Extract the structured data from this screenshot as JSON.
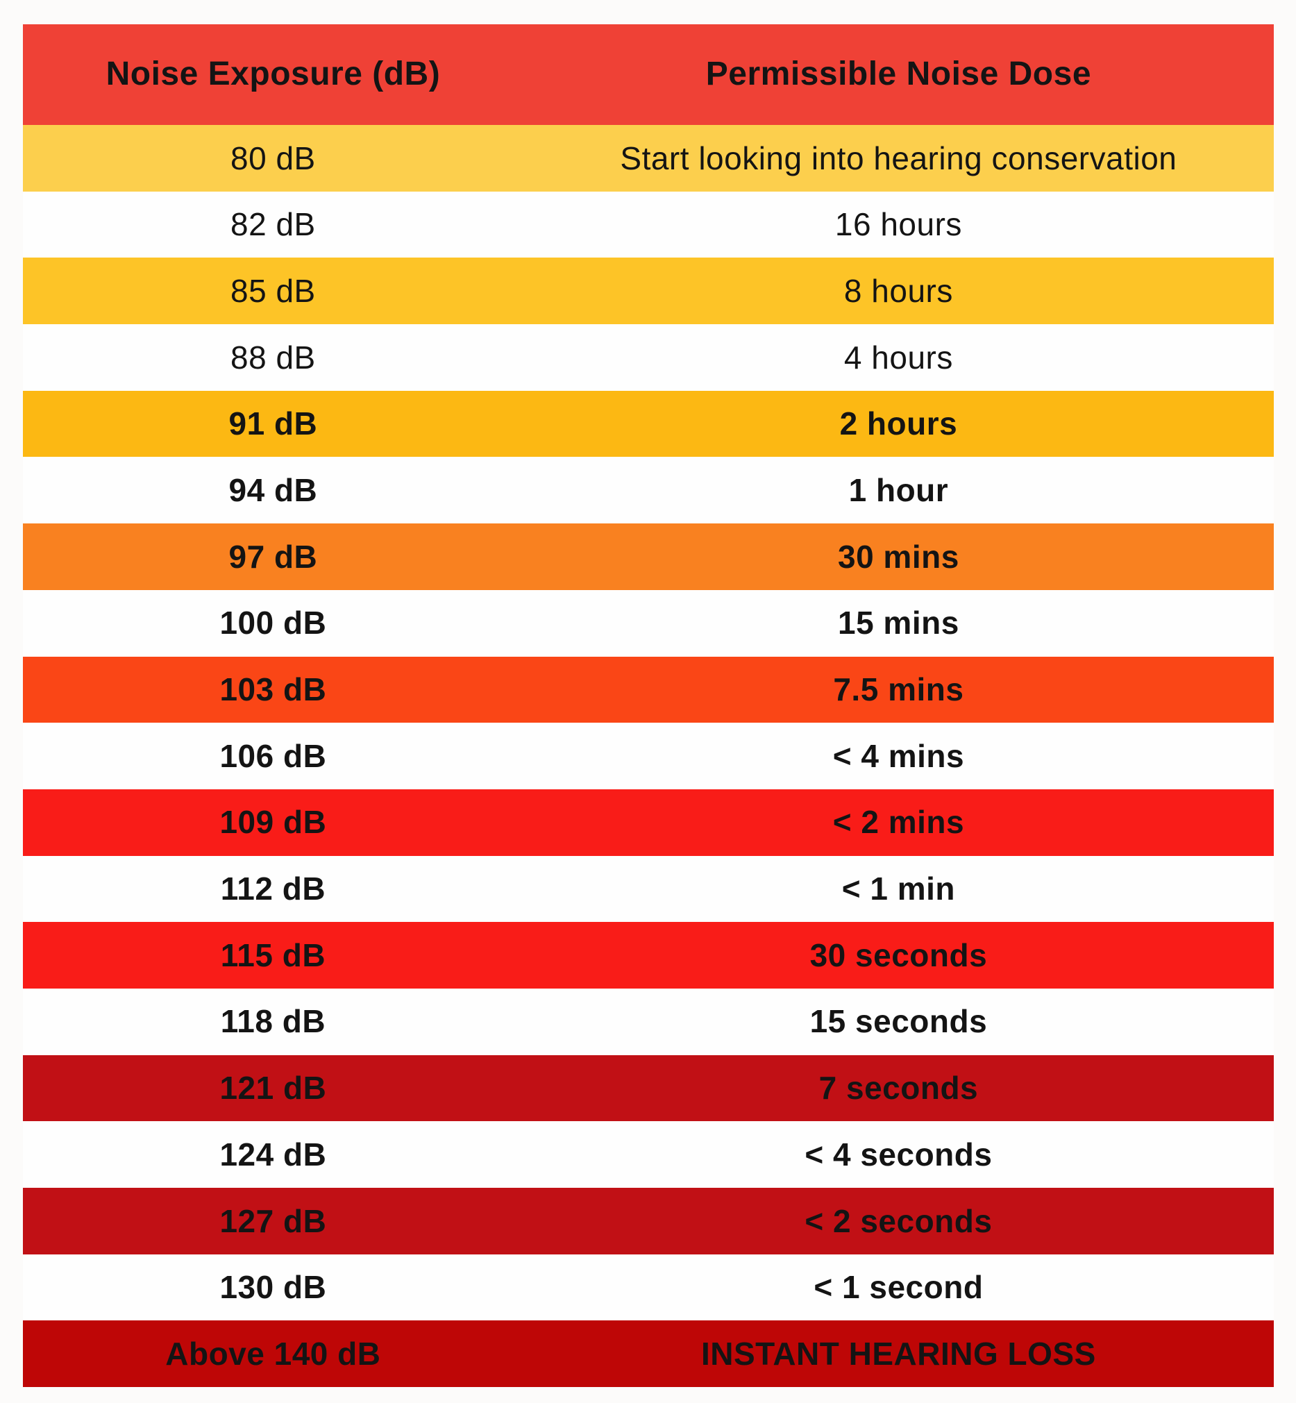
{
  "chart_data": {
    "type": "table",
    "title": "Noise exposure level vs permissible noise dose",
    "columns": [
      "Noise Exposure (dB)",
      "Permissible Noise Dose"
    ],
    "header_bg": "#EF4136",
    "text_color": "#141414",
    "rows": [
      {
        "exposure": "80 dB",
        "dose": "Start looking into hearing conservation",
        "bg": "#FCCF4D",
        "bold": false
      },
      {
        "exposure": "82 dB",
        "dose": "16 hours",
        "bg": "#FEFEFE",
        "bold": false
      },
      {
        "exposure": "85 dB",
        "dose": "8 hours",
        "bg": "#FDC427",
        "bold": false
      },
      {
        "exposure": "88 dB",
        "dose": "4 hours",
        "bg": "#FEFEFE",
        "bold": false
      },
      {
        "exposure": "91 dB",
        "dose": "2 hours",
        "bg": "#FCB813",
        "bold": true
      },
      {
        "exposure": "94 dB",
        "dose": "1 hour",
        "bg": "#FEFEFE",
        "bold": true
      },
      {
        "exposure": "97 dB",
        "dose": "30 mins",
        "bg": "#F98120",
        "bold": true
      },
      {
        "exposure": "100 dB",
        "dose": "15 mins",
        "bg": "#FEFEFE",
        "bold": true
      },
      {
        "exposure": "103 dB",
        "dose": "7.5 mins",
        "bg": "#FA4616",
        "bold": true
      },
      {
        "exposure": "106 dB",
        "dose": "< 4 mins",
        "bg": "#FEFEFE",
        "bold": true
      },
      {
        "exposure": "109 dB",
        "dose": "< 2 mins",
        "bg": "#F91C18",
        "bold": true
      },
      {
        "exposure": "112 dB",
        "dose": "< 1 min",
        "bg": "#FEFEFE",
        "bold": true
      },
      {
        "exposure": "115 dB",
        "dose": "30 seconds",
        "bg": "#F91C18",
        "bold": true
      },
      {
        "exposure": "118 dB",
        "dose": "15 seconds",
        "bg": "#FEFEFE",
        "bold": true
      },
      {
        "exposure": "121 dB",
        "dose": "7 seconds",
        "bg": "#C11015",
        "bold": true
      },
      {
        "exposure": "124 dB",
        "dose": "< 4 seconds",
        "bg": "#FEFEFE",
        "bold": true
      },
      {
        "exposure": "127 dB",
        "dose": "< 2 seconds",
        "bg": "#C11015",
        "bold": true
      },
      {
        "exposure": "130 dB",
        "dose": "< 1 second",
        "bg": "#FEFEFE",
        "bold": true
      },
      {
        "exposure": "Above 140 dB",
        "dose": "INSTANT HEARING LOSS",
        "bg": "#BE0606",
        "bold": true
      }
    ]
  }
}
